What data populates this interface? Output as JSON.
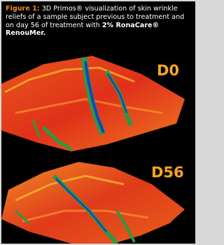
{
  "figure": {
    "label": "Figure 1:",
    "caption": "3D Primos® visualization of skin wrinkle reliefs of a sample subject previous to treatment and on day 56 of treatment with",
    "caption_emphasis": "2% RonaCare® RenouMer.",
    "panels": [
      {
        "label": "D0"
      },
      {
        "label": "D56"
      }
    ]
  }
}
